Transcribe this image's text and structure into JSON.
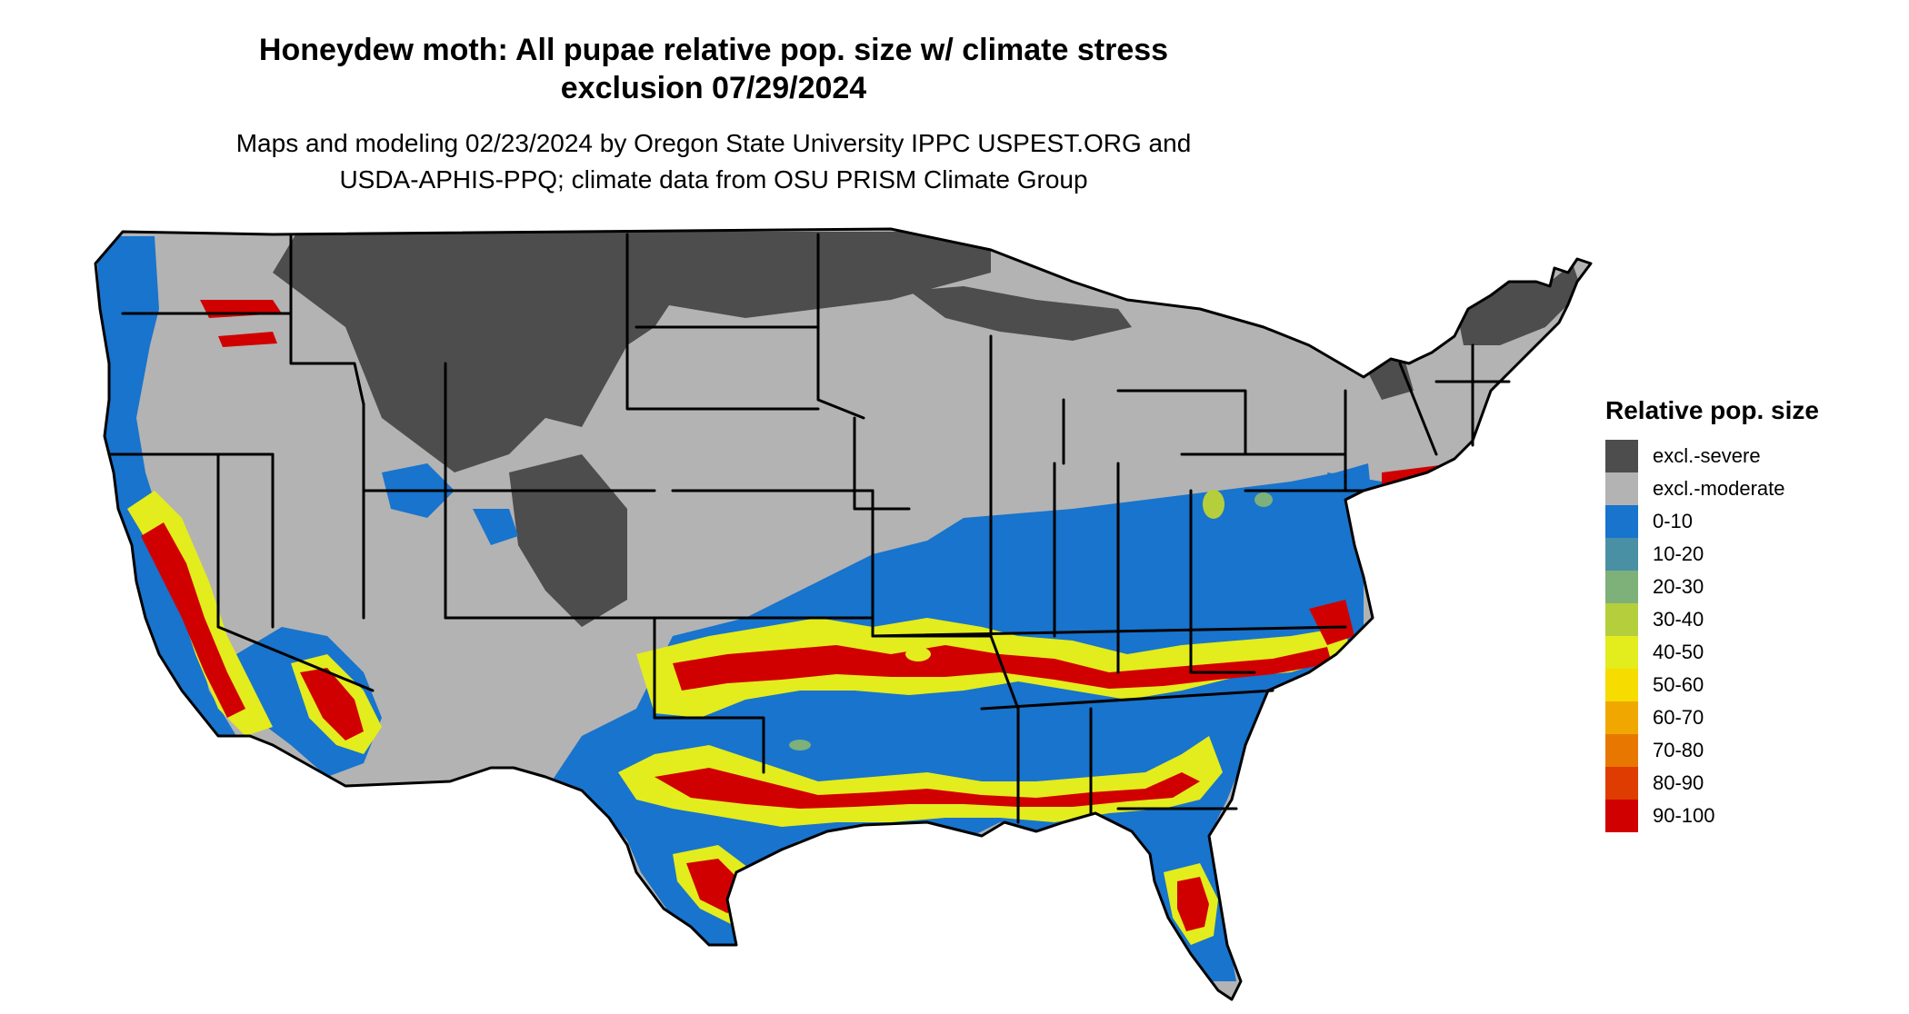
{
  "title": {
    "line1": "Honeydew moth: All pupae relative pop. size w/ climate stress",
    "line2": "exclusion 07/29/2024"
  },
  "subtitle": {
    "line1": "Maps and modeling 02/23/2024 by Oregon State University IPPC USPEST.ORG and",
    "line2": "USDA-APHIS-PPQ; climate data from OSU PRISM Climate Group"
  },
  "legend": {
    "title": "Relative pop. size",
    "items": [
      {
        "label": "excl.-severe",
        "color": "#4d4d4d"
      },
      {
        "label": "excl.-moderate",
        "color": "#b3b3b3"
      },
      {
        "label": "0-10",
        "color": "#1874cd"
      },
      {
        "label": "10-20",
        "color": "#4a90a4"
      },
      {
        "label": "20-30",
        "color": "#7eb07a"
      },
      {
        "label": "30-40",
        "color": "#b5cf3c"
      },
      {
        "label": "40-50",
        "color": "#e3ec1c"
      },
      {
        "label": "50-60",
        "color": "#f7dc00"
      },
      {
        "label": "60-70",
        "color": "#f0a800"
      },
      {
        "label": "70-80",
        "color": "#e87700"
      },
      {
        "label": "80-90",
        "color": "#de3c00"
      },
      {
        "label": "90-100",
        "color": "#d10000"
      }
    ]
  }
}
